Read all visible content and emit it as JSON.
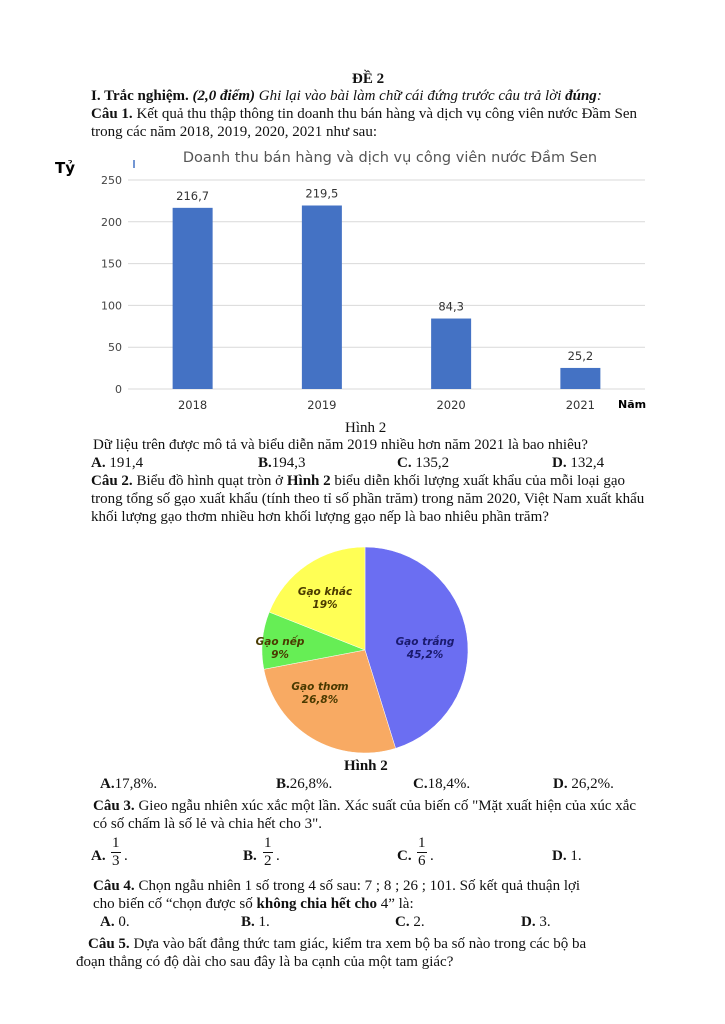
{
  "header": {
    "title": "ĐỀ 2",
    "section": "I. Trắc nghiệm.",
    "points": "(2,0 điểm)",
    "instruction": "Ghi lại vào bài làm chữ cái đứng trước câu trả lời",
    "instruction_bold": "đúng",
    "instruction_end": ":"
  },
  "q1": {
    "label": "Câu 1.",
    "text1": "Kết quả thu thập thông tin doanh thu bán hàng và dịch vụ công viên nước Đầm Sen",
    "text2": "trong các năm 2018, 2019, 2020, 2021 như sau:",
    "figure_caption": "Hình 2",
    "question": "Dữ liệu trên được mô tả và biểu diễn năm 2019 nhiều hơn năm 2021 là bao nhiêu?",
    "options": [
      {
        "k": "A.",
        "v": " 191,4"
      },
      {
        "k": "B.",
        "v": "194,3"
      },
      {
        "k": "C.",
        "v": " 135,2"
      },
      {
        "k": "D.",
        "v": " 132,4"
      }
    ]
  },
  "q2": {
    "label": "Câu 2.",
    "text1a": "Biểu đồ hình quạt tròn ở",
    "text1b": "Hình 2",
    "text1c": "biểu diễn khối lượng xuất khẩu của mỗi loại gạo",
    "text2": "trong tổng số gạo xuất khẩu (tính theo tỉ số phần trăm) trong năm 2020, Việt Nam xuất khẩu",
    "text3": "khối lượng gạo thơm nhiều hơn khối lượng gạo nếp là bao nhiêu phần trăm?",
    "figure_caption": "Hình 2",
    "options": [
      {
        "k": "A.",
        "v": "17,8%."
      },
      {
        "k": "B.",
        "v": "26,8%."
      },
      {
        "k": "C.",
        "v": "18,4%."
      },
      {
        "k": "D.",
        "v": " 26,2%."
      }
    ]
  },
  "q3": {
    "label": "Câu 3.",
    "text1": "Gieo ngẫu nhiên xúc xắc một lần. Xác suất của biến cố \"Mặt xuất hiện của xúc xắc",
    "text2": "có số chấm là số lẻ và chia hết cho 3\".",
    "options": [
      {
        "k": "A.",
        "num": "1",
        "den": "3"
      },
      {
        "k": "B.",
        "num": "1",
        "den": "2"
      },
      {
        "k": "C.",
        "num": "1",
        "den": "6"
      },
      {
        "k": "D.",
        "v": " 1."
      }
    ]
  },
  "q4": {
    "label": "Câu 4.",
    "text1": "Chọn ngẫu nhiên 1 số trong 4 số sau: 7 ; 8 ; 26 ; 101.  Số kết quả thuận lợi",
    "text2a": "cho biến cố “chọn được số",
    "text2b": "không chia hết cho",
    "text2c": "4” là:",
    "options": [
      {
        "k": "A.",
        "v": " 0."
      },
      {
        "k": "B.",
        "v": " 1."
      },
      {
        "k": "C.",
        "v": " 2."
      },
      {
        "k": "D.",
        "v": " 3."
      }
    ]
  },
  "q5": {
    "label": "Câu 5.",
    "text1": "Dựa vào bất đẳng thức tam giác, kiểm tra xem bộ ba số nào trong các bộ ba",
    "text2": "đoạn thẳng có độ dài cho sau đây là ba cạnh của một tam giác?"
  },
  "chart_data": [
    {
      "type": "bar",
      "title": "Doanh thu bán hàng và dịch vụ công viên nước Đầm Sen",
      "ylabel": "Tỷ",
      "xlabel": "Năm",
      "categories": [
        "2018",
        "2019",
        "2020",
        "2021"
      ],
      "values": [
        216.7,
        219.5,
        84.3,
        25.2
      ],
      "data_labels": [
        "216,7",
        "219,5",
        "84,3",
        "25,2"
      ],
      "yticks": [
        0,
        50,
        100,
        150,
        200,
        250
      ],
      "ylim": [
        0,
        250
      ],
      "grid": true,
      "color": "#4472c4"
    },
    {
      "type": "pie",
      "slices": [
        {
          "name": "Gạo trắng",
          "label": "45,2%",
          "value": 45.2,
          "color": "#6b6ef2"
        },
        {
          "name": "Gạo thơm",
          "label": "26,8%",
          "value": 26.8,
          "color": "#f8aa63"
        },
        {
          "name": "Gạo nếp",
          "label": "9%",
          "value": 9,
          "color": "#66ee55"
        },
        {
          "name": "Gạo khác",
          "label": "19%",
          "value": 19,
          "color": "#ffff55"
        }
      ]
    }
  ]
}
